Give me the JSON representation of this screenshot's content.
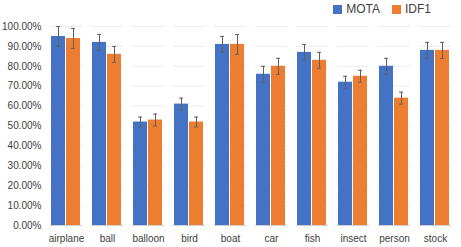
{
  "chart_data": {
    "type": "bar",
    "categories": [
      "airplane",
      "ball",
      "balloon",
      "bird",
      "boat",
      "car",
      "fish",
      "insect",
      "person",
      "stock"
    ],
    "series": [
      {
        "name": "MOTA",
        "color": "#4472c4",
        "values": [
          95,
          92,
          52,
          61,
          91,
          76,
          87,
          72,
          80,
          88
        ],
        "errors": [
          5,
          4,
          2.5,
          3,
          4,
          4,
          4,
          3,
          4,
          4
        ]
      },
      {
        "name": "IDF1",
        "color": "#ed7d31",
        "values": [
          94,
          86,
          53,
          52,
          91,
          80,
          83,
          75,
          64,
          88
        ],
        "errors": [
          5,
          4,
          3,
          2.5,
          5,
          4,
          4,
          3,
          3,
          4
        ]
      }
    ],
    "ylim": [
      0,
      100
    ],
    "yticks": [
      {
        "value": 0,
        "label": "0.00%"
      },
      {
        "value": 10,
        "label": "10.00%"
      },
      {
        "value": 20,
        "label": "20.00%"
      },
      {
        "value": 30,
        "label": "30.00%"
      },
      {
        "value": 40,
        "label": "40.00%"
      },
      {
        "value": 50,
        "label": "50.00%"
      },
      {
        "value": 60,
        "label": "60.00%"
      },
      {
        "value": 70,
        "label": "70.00%"
      },
      {
        "value": 80,
        "label": "80.00%"
      },
      {
        "value": 90,
        "label": "90.00%"
      },
      {
        "value": 100,
        "label": "100.00%"
      }
    ],
    "grid": true,
    "legend": "upper right"
  }
}
